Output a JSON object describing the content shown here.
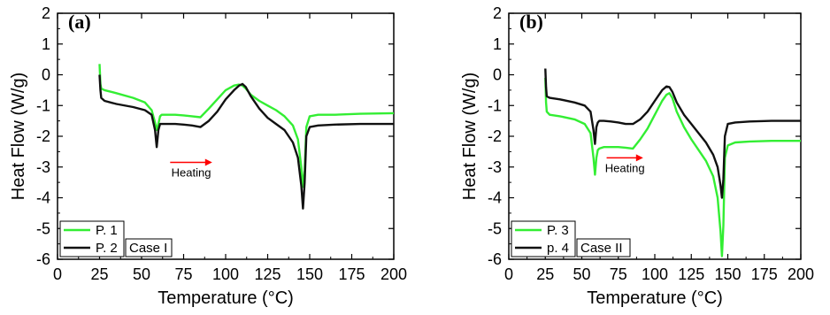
{
  "chart_data": [
    {
      "type": "line",
      "panel_label": "(a)",
      "xlabel": "Temperature (°C)",
      "ylabel": "Heat Flow (W/g)",
      "xlim": [
        0,
        200
      ],
      "ylim": [
        -6,
        2
      ],
      "xticks": [
        0,
        25,
        50,
        75,
        100,
        125,
        150,
        175,
        200
      ],
      "yticks": [
        2,
        1,
        0,
        -1,
        -2,
        -3,
        -4,
        -5,
        -6
      ],
      "grid": false,
      "legend_position": "bottom-left",
      "annotation": {
        "text": "Heating",
        "arrow_x": [
          67,
          92
        ],
        "y": -2.85,
        "color": "#ff0000"
      },
      "case_label": "Case I",
      "series": [
        {
          "name": "P. 1",
          "color": "#33ee33",
          "x": [
            25,
            25.5,
            26,
            28,
            35,
            45,
            52,
            56,
            58,
            59,
            60,
            61,
            62,
            65,
            70,
            75,
            80,
            85,
            90,
            95,
            100,
            105,
            108,
            110,
            112,
            115,
            120,
            125,
            130,
            135,
            140,
            143,
            145,
            146,
            147,
            148,
            150,
            155,
            165,
            180,
            200
          ],
          "y": [
            0.35,
            -0.3,
            -0.45,
            -0.5,
            -0.6,
            -0.75,
            -0.9,
            -1.15,
            -1.55,
            -1.8,
            -1.6,
            -1.35,
            -1.3,
            -1.3,
            -1.3,
            -1.32,
            -1.35,
            -1.38,
            -1.1,
            -0.8,
            -0.5,
            -0.35,
            -0.32,
            -0.35,
            -0.45,
            -0.65,
            -0.85,
            -1.0,
            -1.15,
            -1.35,
            -1.65,
            -2.1,
            -3.0,
            -3.65,
            -3.1,
            -1.7,
            -1.35,
            -1.3,
            -1.3,
            -1.27,
            -1.25
          ]
        },
        {
          "name": "P. 2",
          "color": "#111111",
          "x": [
            25,
            25.5,
            26,
            28,
            35,
            45,
            52,
            56,
            58,
            59,
            60,
            61,
            62,
            65,
            70,
            75,
            80,
            85,
            90,
            95,
            100,
            105,
            108,
            110,
            112,
            115,
            120,
            125,
            130,
            135,
            140,
            143,
            145,
            146,
            147,
            148,
            150,
            155,
            165,
            180,
            200
          ],
          "y": [
            0.0,
            -0.5,
            -0.75,
            -0.85,
            -0.95,
            -1.05,
            -1.15,
            -1.3,
            -1.8,
            -2.35,
            -1.8,
            -1.6,
            -1.6,
            -1.6,
            -1.6,
            -1.62,
            -1.65,
            -1.7,
            -1.5,
            -1.2,
            -0.8,
            -0.5,
            -0.35,
            -0.3,
            -0.4,
            -0.7,
            -1.1,
            -1.4,
            -1.6,
            -1.8,
            -2.2,
            -2.7,
            -3.6,
            -4.35,
            -3.5,
            -2.0,
            -1.7,
            -1.65,
            -1.62,
            -1.6,
            -1.6
          ]
        }
      ]
    },
    {
      "type": "line",
      "panel_label": "(b)",
      "xlabel": "Temperature (°C)",
      "ylabel": "Heat Flow (W/g)",
      "xlim": [
        0,
        200
      ],
      "ylim": [
        -6,
        2
      ],
      "xticks": [
        0,
        25,
        50,
        75,
        100,
        125,
        150,
        175,
        200
      ],
      "yticks": [
        2,
        1,
        0,
        -1,
        -2,
        -3,
        -4,
        -5,
        -6
      ],
      "grid": false,
      "legend_position": "bottom-left",
      "annotation": {
        "text": "Heating",
        "arrow_x": [
          67,
          92
        ],
        "y": -2.7,
        "color": "#ff0000"
      },
      "case_label": "Case II",
      "series": [
        {
          "name": "P. 3",
          "color": "#33ee33",
          "x": [
            25,
            25.5,
            26,
            28,
            35,
            45,
            52,
            56,
            58,
            59,
            60,
            61,
            62,
            65,
            70,
            75,
            80,
            85,
            90,
            95,
            100,
            105,
            108,
            110,
            112,
            115,
            120,
            125,
            130,
            135,
            140,
            143,
            145,
            146,
            147,
            148,
            150,
            155,
            165,
            180,
            200
          ],
          "y": [
            -0.1,
            -0.9,
            -1.2,
            -1.3,
            -1.35,
            -1.45,
            -1.6,
            -1.9,
            -2.7,
            -3.25,
            -2.7,
            -2.45,
            -2.4,
            -2.35,
            -2.35,
            -2.35,
            -2.37,
            -2.4,
            -2.1,
            -1.75,
            -1.3,
            -0.85,
            -0.65,
            -0.6,
            -0.75,
            -1.2,
            -1.7,
            -2.1,
            -2.45,
            -2.8,
            -3.3,
            -4.0,
            -5.1,
            -5.9,
            -4.9,
            -2.7,
            -2.3,
            -2.2,
            -2.17,
            -2.15,
            -2.15
          ]
        },
        {
          "name": "p. 4",
          "color": "#111111",
          "x": [
            25,
            25.5,
            26,
            28,
            35,
            45,
            52,
            56,
            58,
            59,
            60,
            61,
            62,
            65,
            70,
            75,
            80,
            85,
            90,
            95,
            100,
            105,
            108,
            110,
            112,
            115,
            120,
            125,
            130,
            135,
            140,
            143,
            145,
            146,
            147,
            148,
            150,
            155,
            165,
            180,
            200
          ],
          "y": [
            0.2,
            -0.4,
            -0.7,
            -0.75,
            -0.8,
            -0.9,
            -1.0,
            -1.2,
            -1.8,
            -2.25,
            -1.7,
            -1.55,
            -1.5,
            -1.5,
            -1.52,
            -1.55,
            -1.6,
            -1.6,
            -1.45,
            -1.2,
            -0.85,
            -0.5,
            -0.38,
            -0.4,
            -0.55,
            -0.9,
            -1.3,
            -1.6,
            -1.9,
            -2.2,
            -2.6,
            -3.0,
            -3.6,
            -4.0,
            -3.4,
            -2.0,
            -1.6,
            -1.55,
            -1.52,
            -1.5,
            -1.5
          ]
        }
      ]
    }
  ]
}
